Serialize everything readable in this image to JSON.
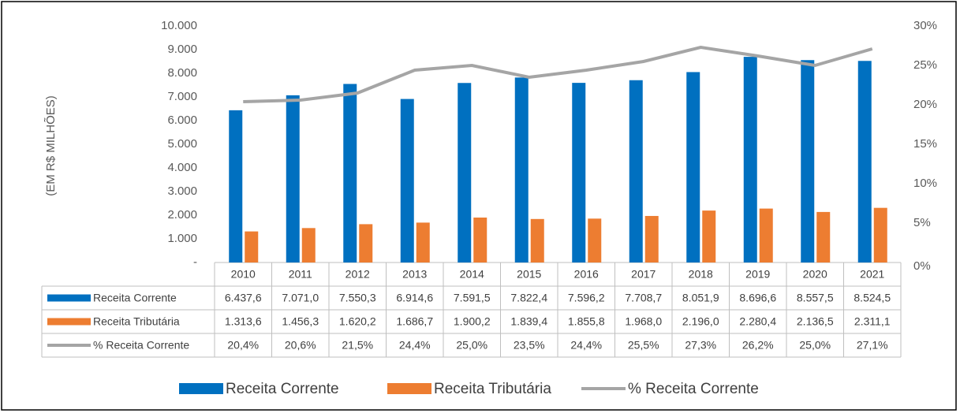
{
  "chart_data": {
    "type": "bar",
    "y_label": "(EM R$ MILHÕES)",
    "categories": [
      "2010",
      "2011",
      "2012",
      "2013",
      "2014",
      "2015",
      "2016",
      "2017",
      "2018",
      "2019",
      "2020",
      "2021"
    ],
    "series": [
      {
        "name": "Receita Corrente",
        "type": "bar",
        "color": "#0070c0",
        "values": [
          6437.6,
          7071.0,
          7550.3,
          6914.6,
          7591.5,
          7822.4,
          7596.2,
          7708.7,
          8051.9,
          8696.6,
          8557.5,
          8524.5
        ],
        "value_labels": [
          "6.437,6",
          "7.071,0",
          "7.550,3",
          "6.914,6",
          "7.591,5",
          "7.822,4",
          "7.596,2",
          "7.708,7",
          "8.051,9",
          "8.696,6",
          "8.557,5",
          "8.524,5"
        ]
      },
      {
        "name": "Receita Tributária",
        "type": "bar",
        "color": "#ed7d31",
        "values": [
          1313.6,
          1456.3,
          1620.2,
          1686.7,
          1900.2,
          1839.4,
          1855.8,
          1968.0,
          2196.0,
          2280.4,
          2136.5,
          2311.1
        ],
        "value_labels": [
          "1.313,6",
          "1.456,3",
          "1.620,2",
          "1.686,7",
          "1.900,2",
          "1.839,4",
          "1.855,8",
          "1.968,0",
          "2.196,0",
          "2.280,4",
          "2.136,5",
          "2.311,1"
        ]
      },
      {
        "name": "% Receita Corrente",
        "type": "line",
        "axis": "y2",
        "color": "#a5a5a5",
        "values": [
          20.4,
          20.6,
          21.5,
          24.4,
          25.0,
          23.5,
          24.4,
          25.5,
          27.3,
          26.2,
          25.0,
          27.1
        ],
        "value_labels": [
          "20,4%",
          "20,6%",
          "21,5%",
          "24,4%",
          "25,0%",
          "23,5%",
          "24,4%",
          "25,5%",
          "27,3%",
          "26,2%",
          "25,0%",
          "27,1%"
        ]
      }
    ],
    "ylim": [
      0,
      10000
    ],
    "yticks": [
      {
        "value": 0,
        "label": "-"
      },
      {
        "value": 1000,
        "label": "1.000"
      },
      {
        "value": 2000,
        "label": "2.000"
      },
      {
        "value": 3000,
        "label": "3.000"
      },
      {
        "value": 4000,
        "label": "4.000"
      },
      {
        "value": 5000,
        "label": "5.000"
      },
      {
        "value": 6000,
        "label": "6.000"
      },
      {
        "value": 7000,
        "label": "7.000"
      },
      {
        "value": 8000,
        "label": "8.000"
      },
      {
        "value": 9000,
        "label": "9.000"
      },
      {
        "value": 10000,
        "label": "10.000"
      }
    ],
    "y2lim": [
      0,
      30
    ],
    "y2ticks": [
      {
        "value": 0,
        "label": "0%"
      },
      {
        "value": 5,
        "label": "5%"
      },
      {
        "value": 10,
        "label": "10%"
      },
      {
        "value": 15,
        "label": "15%"
      },
      {
        "value": 20,
        "label": "20%"
      },
      {
        "value": 25,
        "label": "25%"
      },
      {
        "value": 30,
        "label": "30%"
      }
    ],
    "grid": false,
    "legend": "bottom"
  }
}
